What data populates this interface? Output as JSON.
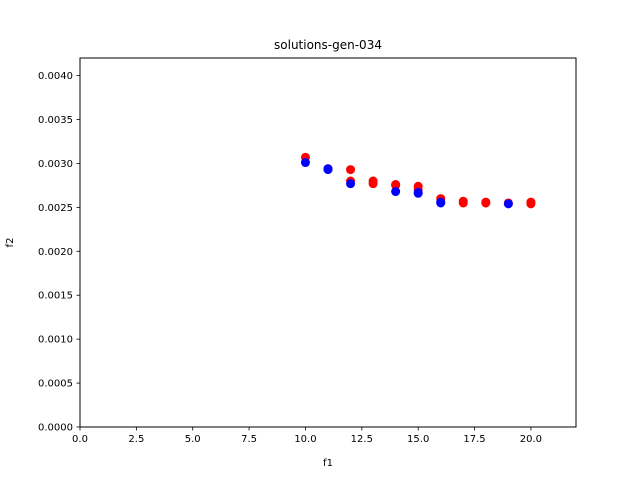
{
  "chart_data": {
    "type": "scatter",
    "title": "solutions-gen-034",
    "xlabel": "f1",
    "ylabel": "f2",
    "xlim": [
      0,
      22
    ],
    "ylim": [
      0,
      0.0042
    ],
    "grid": false,
    "x_ticks": [
      "0.0",
      "2.5",
      "5.0",
      "7.5",
      "10.0",
      "12.5",
      "15.0",
      "17.5",
      "20.0"
    ],
    "y_ticks": [
      "0.0000",
      "0.0005",
      "0.0010",
      "0.0015",
      "0.0020",
      "0.0025",
      "0.0030",
      "0.0035",
      "0.0040"
    ],
    "series": [
      {
        "color": "#ff0000",
        "points": [
          [
            10,
            0.00307
          ],
          [
            11,
            0.00294
          ],
          [
            12,
            0.00293
          ],
          [
            12,
            0.0028
          ],
          [
            13,
            0.0028
          ],
          [
            13,
            0.00277
          ],
          [
            14,
            0.00276
          ],
          [
            14,
            0.00275
          ],
          [
            15,
            0.00274
          ],
          [
            15,
            0.0027
          ],
          [
            16,
            0.0026
          ],
          [
            17,
            0.00257
          ],
          [
            17,
            0.00255
          ],
          [
            18,
            0.00256
          ],
          [
            18,
            0.00255
          ],
          [
            19,
            0.00255
          ],
          [
            20,
            0.00256
          ],
          [
            20,
            0.00254
          ]
        ]
      },
      {
        "color": "#0000ff",
        "points": [
          [
            10,
            0.00301
          ],
          [
            11,
            0.00294
          ],
          [
            11,
            0.00293
          ],
          [
            12,
            0.00277
          ],
          [
            14,
            0.00268
          ],
          [
            15,
            0.00267
          ],
          [
            15,
            0.00266
          ],
          [
            16,
            0.00256
          ],
          [
            16,
            0.00255
          ],
          [
            19,
            0.00254
          ]
        ]
      }
    ]
  }
}
